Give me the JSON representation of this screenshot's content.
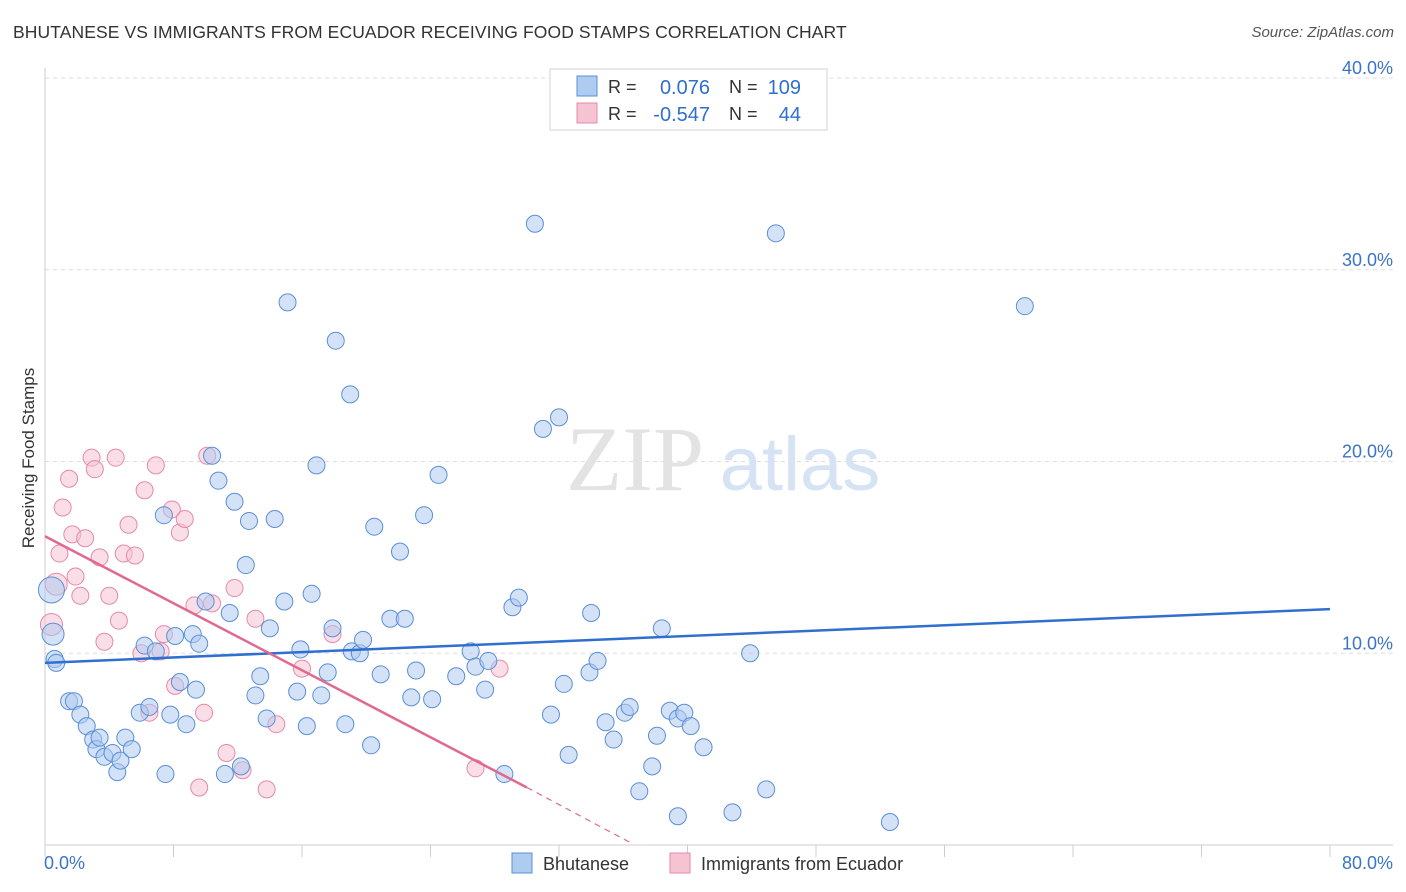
{
  "title": "BHUTANESE VS IMMIGRANTS FROM ECUADOR RECEIVING FOOD STAMPS CORRELATION CHART",
  "source": "Source: ZipAtlas.com",
  "watermark": {
    "zip": "ZIP",
    "atlas": "atlas"
  },
  "colors": {
    "blue_fill": "#aecbf0",
    "blue_stroke": "#5b8fd6",
    "blue_line": "#2f6fd0",
    "pink_fill": "#f6c3d3",
    "pink_stroke": "#e58aa8",
    "pink_line": "#e0698f",
    "grid": "#dddddd",
    "axis_label": "#3a74c8"
  },
  "legend": {
    "r_label": "R =",
    "n_label": "N =",
    "blue": {
      "r": "0.076",
      "n": "109"
    },
    "pink": {
      "r": "-0.547",
      "n": "44"
    }
  },
  "chart_data": {
    "type": "scatter",
    "title": "BHUTANESE VS IMMIGRANTS FROM ECUADOR RECEIVING FOOD STAMPS CORRELATION CHART",
    "xlabel": "",
    "ylabel": "Receiving Food Stamps",
    "xlim": [
      0,
      80
    ],
    "ylim": [
      0,
      40
    ],
    "x_tick_labels": [
      "0.0%",
      "80.0%"
    ],
    "y_ticks": [
      10,
      20,
      30,
      40
    ],
    "y_tick_labels": [
      "10.0%",
      "20.0%",
      "30.0%",
      "40.0%"
    ],
    "series": [
      {
        "name": "Bhutanese",
        "color": "#5b8fd6",
        "trend": {
          "x": [
            0,
            80
          ],
          "y": [
            9.5,
            12.3
          ]
        },
        "points": [
          [
            0.4,
            13.3
          ],
          [
            0.5,
            11.0
          ],
          [
            0.6,
            9.7
          ],
          [
            0.7,
            9.5
          ],
          [
            1.5,
            7.5
          ],
          [
            1.8,
            7.5
          ],
          [
            2.2,
            6.8
          ],
          [
            2.6,
            6.2
          ],
          [
            3.0,
            5.5
          ],
          [
            3.2,
            5.0
          ],
          [
            3.4,
            5.6
          ],
          [
            3.7,
            4.6
          ],
          [
            4.2,
            4.8
          ],
          [
            4.5,
            3.8
          ],
          [
            4.7,
            4.4
          ],
          [
            5.0,
            5.6
          ],
          [
            5.4,
            5.0
          ],
          [
            5.9,
            6.9
          ],
          [
            6.2,
            10.4
          ],
          [
            6.5,
            7.2
          ],
          [
            6.9,
            10.1
          ],
          [
            7.4,
            17.2
          ],
          [
            7.5,
            3.7
          ],
          [
            7.8,
            6.8
          ],
          [
            8.1,
            10.9
          ],
          [
            8.4,
            8.5
          ],
          [
            8.8,
            6.3
          ],
          [
            9.2,
            11.0
          ],
          [
            9.4,
            8.1
          ],
          [
            9.6,
            10.5
          ],
          [
            10.0,
            12.7
          ],
          [
            10.4,
            20.3
          ],
          [
            10.8,
            19.0
          ],
          [
            11.2,
            3.7
          ],
          [
            11.5,
            12.1
          ],
          [
            11.8,
            17.9
          ],
          [
            12.2,
            4.1
          ],
          [
            12.5,
            14.6
          ],
          [
            12.7,
            16.9
          ],
          [
            13.1,
            7.8
          ],
          [
            13.4,
            8.8
          ],
          [
            13.8,
            6.6
          ],
          [
            14.0,
            11.3
          ],
          [
            14.3,
            17.0
          ],
          [
            14.9,
            12.7
          ],
          [
            15.1,
            28.3
          ],
          [
            15.7,
            8.0
          ],
          [
            15.9,
            10.2
          ],
          [
            16.3,
            6.2
          ],
          [
            16.6,
            13.1
          ],
          [
            16.9,
            19.8
          ],
          [
            17.2,
            7.8
          ],
          [
            17.6,
            9.0
          ],
          [
            17.9,
            11.3
          ],
          [
            18.1,
            26.3
          ],
          [
            18.7,
            6.3
          ],
          [
            19.0,
            23.5
          ],
          [
            19.1,
            10.1
          ],
          [
            19.6,
            10.0
          ],
          [
            19.8,
            10.7
          ],
          [
            20.3,
            5.2
          ],
          [
            20.5,
            16.6
          ],
          [
            20.9,
            8.9
          ],
          [
            21.5,
            11.8
          ],
          [
            22.1,
            15.3
          ],
          [
            22.4,
            11.8
          ],
          [
            22.8,
            7.7
          ],
          [
            23.1,
            9.1
          ],
          [
            23.6,
            17.2
          ],
          [
            24.1,
            7.6
          ],
          [
            24.5,
            19.3
          ],
          [
            25.6,
            8.8
          ],
          [
            26.5,
            10.1
          ],
          [
            26.8,
            9.3
          ],
          [
            27.4,
            8.1
          ],
          [
            27.6,
            9.6
          ],
          [
            28.6,
            3.7
          ],
          [
            29.1,
            12.4
          ],
          [
            29.5,
            12.9
          ],
          [
            30.5,
            32.4
          ],
          [
            31.0,
            21.7
          ],
          [
            31.5,
            6.8
          ],
          [
            32.0,
            22.3
          ],
          [
            32.3,
            8.4
          ],
          [
            32.6,
            4.7
          ],
          [
            33.9,
            9.0
          ],
          [
            34.0,
            12.1
          ],
          [
            34.4,
            9.6
          ],
          [
            34.9,
            6.4
          ],
          [
            35.4,
            5.5
          ],
          [
            36.1,
            6.9
          ],
          [
            36.4,
            7.2
          ],
          [
            37.0,
            2.8
          ],
          [
            37.8,
            4.1
          ],
          [
            38.1,
            5.7
          ],
          [
            38.4,
            11.3
          ],
          [
            38.9,
            7.0
          ],
          [
            39.4,
            1.5
          ],
          [
            39.4,
            6.6
          ],
          [
            39.8,
            6.9
          ],
          [
            40.2,
            6.2
          ],
          [
            41.0,
            5.1
          ],
          [
            42.8,
            1.7
          ],
          [
            43.9,
            10.0
          ],
          [
            44.9,
            2.9
          ],
          [
            45.5,
            31.9
          ],
          [
            52.6,
            1.2
          ],
          [
            61.0,
            28.1
          ]
        ]
      },
      {
        "name": "Immigrants from Ecuador",
        "color": "#e58aa8",
        "trend": {
          "x": [
            0,
            30
          ],
          "y": [
            16.1,
            3.0
          ]
        },
        "trend_dashed": {
          "x": [
            30,
            36.5
          ],
          "y": [
            3.0,
            0.1
          ]
        },
        "points": [
          [
            0.4,
            11.5
          ],
          [
            0.7,
            13.6
          ],
          [
            0.9,
            15.2
          ],
          [
            1.1,
            17.6
          ],
          [
            1.5,
            19.1
          ],
          [
            1.7,
            16.2
          ],
          [
            1.9,
            14.0
          ],
          [
            2.2,
            13.0
          ],
          [
            2.5,
            16.0
          ],
          [
            2.9,
            20.2
          ],
          [
            3.1,
            19.6
          ],
          [
            3.4,
            15.0
          ],
          [
            3.7,
            10.6
          ],
          [
            4.0,
            13.0
          ],
          [
            4.4,
            20.2
          ],
          [
            4.6,
            11.7
          ],
          [
            4.9,
            15.2
          ],
          [
            5.2,
            16.7
          ],
          [
            5.6,
            15.1
          ],
          [
            6.0,
            10.0
          ],
          [
            6.2,
            18.5
          ],
          [
            6.5,
            6.9
          ],
          [
            6.9,
            19.8
          ],
          [
            7.2,
            10.1
          ],
          [
            7.4,
            11.0
          ],
          [
            7.9,
            17.5
          ],
          [
            8.1,
            8.3
          ],
          [
            8.4,
            16.3
          ],
          [
            8.7,
            17.0
          ],
          [
            9.3,
            12.5
          ],
          [
            9.6,
            3.0
          ],
          [
            9.9,
            6.9
          ],
          [
            10.1,
            20.3
          ],
          [
            10.4,
            12.6
          ],
          [
            11.3,
            4.8
          ],
          [
            11.8,
            13.4
          ],
          [
            12.3,
            3.9
          ],
          [
            13.1,
            11.8
          ],
          [
            13.8,
            2.9
          ],
          [
            14.4,
            6.3
          ],
          [
            16.0,
            9.2
          ],
          [
            17.9,
            11.0
          ],
          [
            26.8,
            4.0
          ],
          [
            28.3,
            9.2
          ]
        ]
      }
    ]
  },
  "bottom_legend": [
    {
      "label": "Bhutanese"
    },
    {
      "label": "Immigrants from Ecuador"
    }
  ]
}
